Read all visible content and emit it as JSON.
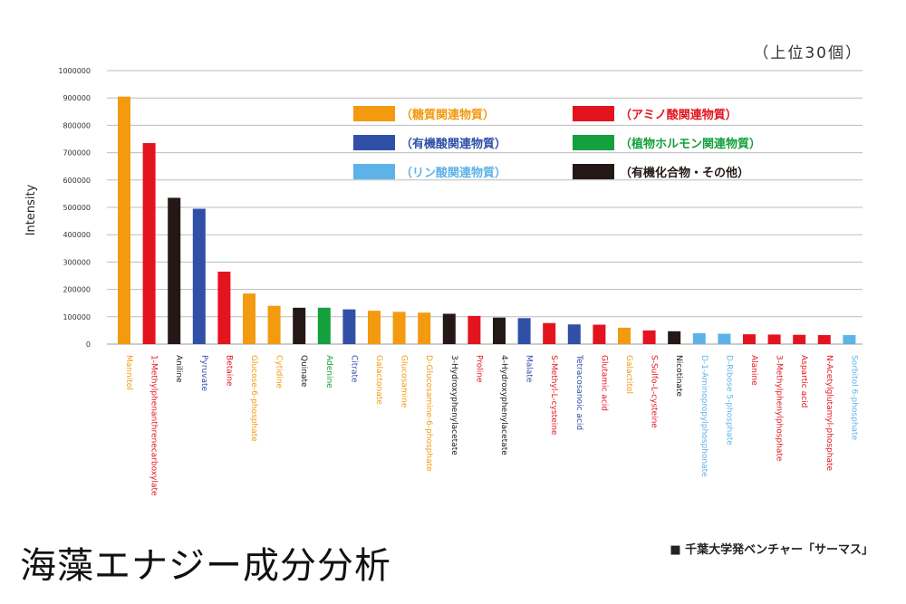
{
  "page": {
    "title": "海藻エナジー成分分析",
    "credit": "■ 千葉大学発ベンチャー「サーマス」",
    "note": "（上位30個）"
  },
  "chart_data": {
    "type": "bar",
    "ylabel": "Intensity",
    "ylim": [
      0,
      1000000
    ],
    "yticks": [
      0,
      100000,
      200000,
      300000,
      400000,
      500000,
      600000,
      700000,
      800000,
      900000,
      1000000
    ],
    "grid": true,
    "legend_position": "top-right",
    "legend": [
      {
        "key": "sugar",
        "label": "（糖質関連物質）",
        "color": "#f39a0f"
      },
      {
        "key": "amino",
        "label": "（アミノ酸関連物質）",
        "color": "#e3141e"
      },
      {
        "key": "organic_acid",
        "label": "（有機酸関連物質）",
        "color": "#3050a8"
      },
      {
        "key": "hormone",
        "label": "（植物ホルモン関連物質）",
        "color": "#14a03c"
      },
      {
        "key": "phosphorus",
        "label": "（リン酸関連物質）",
        "color": "#5db3e8"
      },
      {
        "key": "other",
        "label": "（有機化合物・その他）",
        "color": "#231815"
      }
    ],
    "bars": [
      {
        "label": "Mannitol",
        "value": 905000,
        "group": "sugar"
      },
      {
        "label": "1-Methylphenanthrenecarboxylate",
        "value": 735000,
        "group": "amino"
      },
      {
        "label": "Aniline",
        "value": 535000,
        "group": "other"
      },
      {
        "label": "Pyruvate",
        "value": 495000,
        "group": "organic_acid"
      },
      {
        "label": "Betaine",
        "value": 265000,
        "group": "amino"
      },
      {
        "label": "Glucose-6-phosphate",
        "value": 185000,
        "group": "sugar"
      },
      {
        "label": "Cytidine",
        "value": 140000,
        "group": "sugar"
      },
      {
        "label": "Quinate",
        "value": 133000,
        "group": "other"
      },
      {
        "label": "Adenine",
        "value": 133000,
        "group": "hormone"
      },
      {
        "label": "Citrate",
        "value": 127000,
        "group": "organic_acid"
      },
      {
        "label": "Galactonate",
        "value": 122000,
        "group": "sugar"
      },
      {
        "label": "Glucosamine",
        "value": 118000,
        "group": "sugar"
      },
      {
        "label": "D-Glucosamine-6-phosphate",
        "value": 115000,
        "group": "sugar"
      },
      {
        "label": "3-Hydroxyphenylacetate",
        "value": 111000,
        "group": "other"
      },
      {
        "label": "Proline",
        "value": 103000,
        "group": "amino"
      },
      {
        "label": "4-Hydroxyphenylacetate",
        "value": 97000,
        "group": "other"
      },
      {
        "label": "Malate",
        "value": 95000,
        "group": "organic_acid"
      },
      {
        "label": "S-Methyl-L-cysteine",
        "value": 77000,
        "group": "amino"
      },
      {
        "label": "Tetracosanoic acid",
        "value": 72000,
        "group": "organic_acid"
      },
      {
        "label": "Glutamic acid",
        "value": 71000,
        "group": "amino"
      },
      {
        "label": "Galactitol",
        "value": 60000,
        "group": "sugar"
      },
      {
        "label": "S-Sulfo-L-cysteine",
        "value": 50000,
        "group": "amino"
      },
      {
        "label": "Nicotinate",
        "value": 47000,
        "group": "other"
      },
      {
        "label": "D-1-Aminopropylphosphonate",
        "value": 40000,
        "group": "phosphorus"
      },
      {
        "label": "D-Ribose 5-phosphate",
        "value": 38000,
        "group": "phosphorus"
      },
      {
        "label": "Alanine",
        "value": 36000,
        "group": "amino"
      },
      {
        "label": "3-Methylphenylphosphate",
        "value": 35000,
        "group": "amino"
      },
      {
        "label": "Aspartic acid",
        "value": 34000,
        "group": "amino"
      },
      {
        "label": "N-Acetylglutamyl-phosphate",
        "value": 33000,
        "group": "amino"
      },
      {
        "label": "Sorbitol 6-phosphate",
        "value": 33000,
        "group": "phosphorus"
      }
    ]
  }
}
